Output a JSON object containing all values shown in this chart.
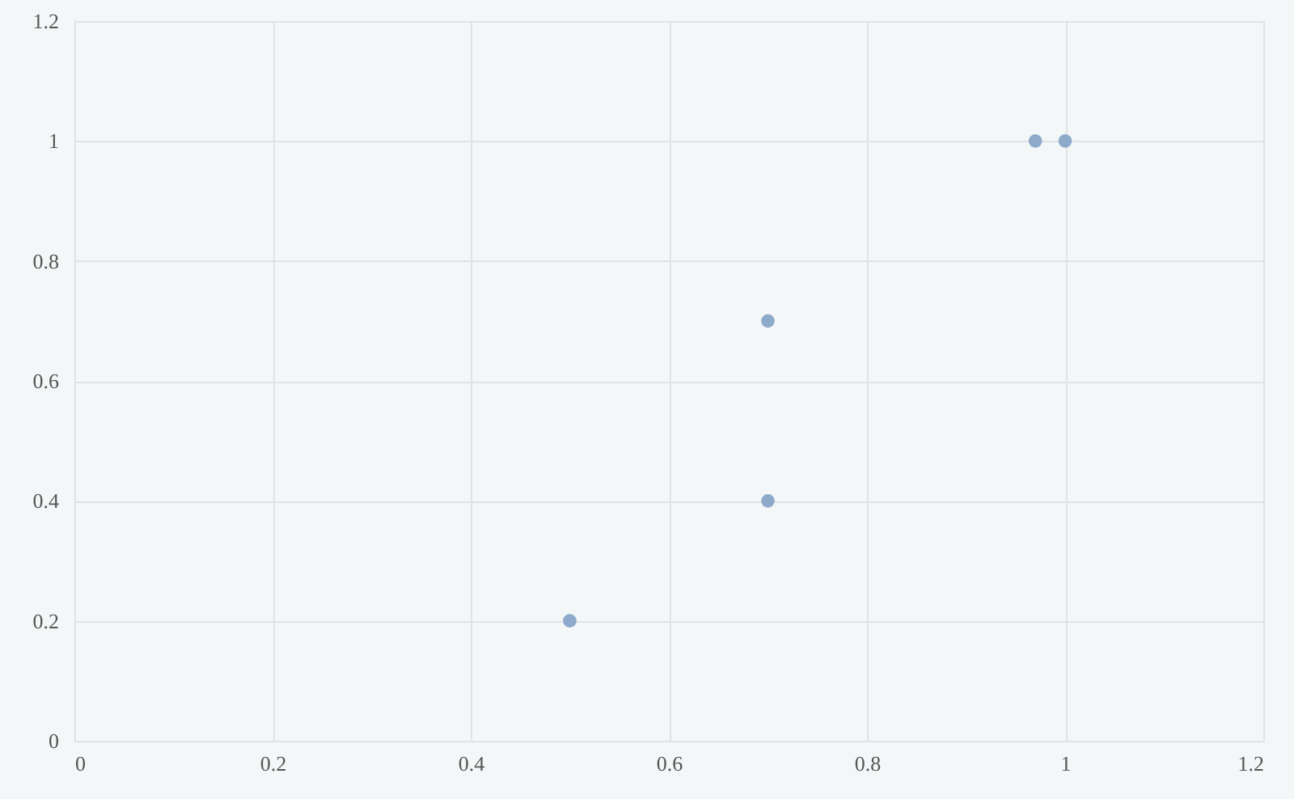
{
  "chart_data": {
    "type": "scatter",
    "x": [
      0.5,
      0.7,
      0.7,
      0.97,
      1.0
    ],
    "series": [
      {
        "color": "#8eaacb",
        "values": [
          0.2,
          0.4,
          0.7,
          1.0,
          1.0
        ]
      }
    ],
    "xlim": [
      0,
      1.2
    ],
    "xticks": [
      0,
      0.2,
      0.4,
      0.6,
      0.8,
      1,
      1.2
    ],
    "ylim": [
      0,
      1.2
    ],
    "yticks": [
      0,
      0.2,
      0.4,
      0.6,
      0.8,
      1,
      1.2
    ],
    "grid": true,
    "marker": "circle"
  }
}
